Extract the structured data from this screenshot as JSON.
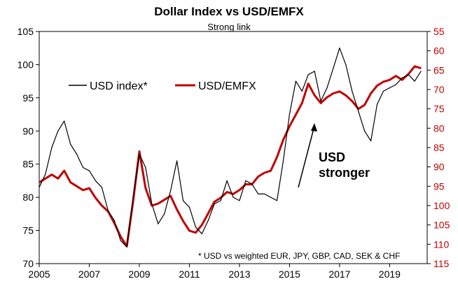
{
  "chart_data": {
    "type": "line",
    "title": "Dollar Index vs USD/EMFX",
    "subtitle": "Strong link",
    "xlabel": "",
    "ylabel_left": "",
    "ylabel_right": "",
    "x_range": [
      2005,
      2020.5
    ],
    "x_ticks": [
      "2005",
      "2007",
      "2009",
      "2011",
      "2013",
      "2015",
      "2017",
      "2019"
    ],
    "y_left": {
      "range": [
        70,
        105
      ],
      "ticks": [
        "70",
        "75",
        "80",
        "85",
        "90",
        "95",
        "100",
        "105"
      ]
    },
    "y_right": {
      "range": [
        115,
        55
      ],
      "inverted": true,
      "ticks": [
        "55",
        "60",
        "65",
        "70",
        "75",
        "80",
        "85",
        "90",
        "95",
        "100",
        "105",
        "110",
        "115"
      ]
    },
    "grid": false,
    "legend": {
      "position": "top-left",
      "entries": [
        "USD index*",
        "USD/EMFX"
      ]
    },
    "annotations": {
      "arrow_text": [
        "USD",
        "stronger"
      ],
      "footnote": "* USD vs weighted EUR, JPY, GBP, CAD, SEK & CHF"
    },
    "colors": {
      "usd_index": "#000000",
      "usd_emfx": "#c00000",
      "right_axis_text": "#c00000"
    },
    "series": [
      {
        "name": "USD index*",
        "axis": "left",
        "x": [
          2005.0,
          2005.25,
          2005.5,
          2005.75,
          2006.0,
          2006.25,
          2006.5,
          2006.75,
          2007.0,
          2007.25,
          2007.5,
          2007.75,
          2008.0,
          2008.25,
          2008.5,
          2008.75,
          2009.0,
          2009.25,
          2009.5,
          2009.75,
          2010.0,
          2010.25,
          2010.5,
          2010.75,
          2011.0,
          2011.25,
          2011.5,
          2011.75,
          2012.0,
          2012.25,
          2012.5,
          2012.75,
          2013.0,
          2013.25,
          2013.5,
          2013.75,
          2014.0,
          2014.25,
          2014.5,
          2014.75,
          2015.0,
          2015.25,
          2015.5,
          2015.75,
          2016.0,
          2016.25,
          2016.5,
          2016.75,
          2017.0,
          2017.25,
          2017.5,
          2017.75,
          2018.0,
          2018.25,
          2018.5,
          2018.75,
          2019.0,
          2019.25,
          2019.5,
          2019.75,
          2020.0,
          2020.25
        ],
        "values": [
          81.5,
          83.5,
          87.5,
          90.0,
          91.5,
          88.0,
          86.5,
          84.5,
          84.0,
          82.5,
          81.5,
          78.0,
          76.5,
          73.5,
          72.5,
          80.0,
          86.5,
          84.5,
          79.0,
          76.0,
          77.5,
          81.0,
          85.5,
          79.5,
          78.5,
          75.5,
          74.5,
          76.5,
          79.0,
          79.5,
          82.5,
          80.0,
          79.5,
          82.5,
          82.0,
          80.5,
          80.5,
          80.0,
          79.5,
          85.5,
          92.5,
          97.5,
          96.0,
          98.5,
          99.0,
          94.5,
          96.5,
          99.5,
          102.5,
          100.0,
          96.0,
          93.0,
          90.0,
          88.5,
          94.0,
          96.0,
          96.5,
          97.0,
          98.0,
          98.5,
          97.5,
          99.0
        ]
      },
      {
        "name": "USD/EMFX",
        "axis": "right",
        "x": [
          2005.0,
          2005.25,
          2005.5,
          2005.75,
          2006.0,
          2006.25,
          2006.5,
          2006.75,
          2007.0,
          2007.25,
          2007.5,
          2007.75,
          2008.0,
          2008.25,
          2008.5,
          2008.75,
          2009.0,
          2009.25,
          2009.5,
          2009.75,
          2010.0,
          2010.25,
          2010.5,
          2010.75,
          2011.0,
          2011.25,
          2011.5,
          2011.75,
          2012.0,
          2012.25,
          2012.5,
          2012.75,
          2013.0,
          2013.25,
          2013.5,
          2013.75,
          2014.0,
          2014.25,
          2014.5,
          2014.75,
          2015.0,
          2015.25,
          2015.5,
          2015.75,
          2016.0,
          2016.25,
          2016.5,
          2016.75,
          2017.0,
          2017.25,
          2017.5,
          2017.75,
          2018.0,
          2018.25,
          2018.5,
          2018.75,
          2019.0,
          2019.25,
          2019.5,
          2019.75,
          2020.0,
          2020.25
        ],
        "values": [
          94.0,
          93.0,
          92.0,
          93.0,
          91.0,
          94.0,
          95.0,
          96.0,
          95.5,
          98.0,
          100.0,
          101.5,
          104.5,
          108.0,
          110.5,
          99.0,
          86.0,
          95.5,
          100.0,
          99.5,
          98.5,
          97.5,
          101.0,
          104.0,
          106.5,
          107.0,
          105.0,
          102.0,
          99.0,
          98.0,
          96.5,
          97.0,
          96.0,
          94.5,
          94.5,
          92.5,
          91.5,
          91.0,
          87.5,
          83.0,
          79.5,
          76.5,
          73.5,
          68.5,
          71.5,
          73.5,
          72.0,
          71.0,
          70.5,
          71.5,
          73.0,
          75.0,
          74.0,
          71.0,
          69.0,
          68.0,
          67.5,
          66.5,
          67.5,
          66.0,
          64.0,
          64.5
        ]
      }
    ]
  }
}
